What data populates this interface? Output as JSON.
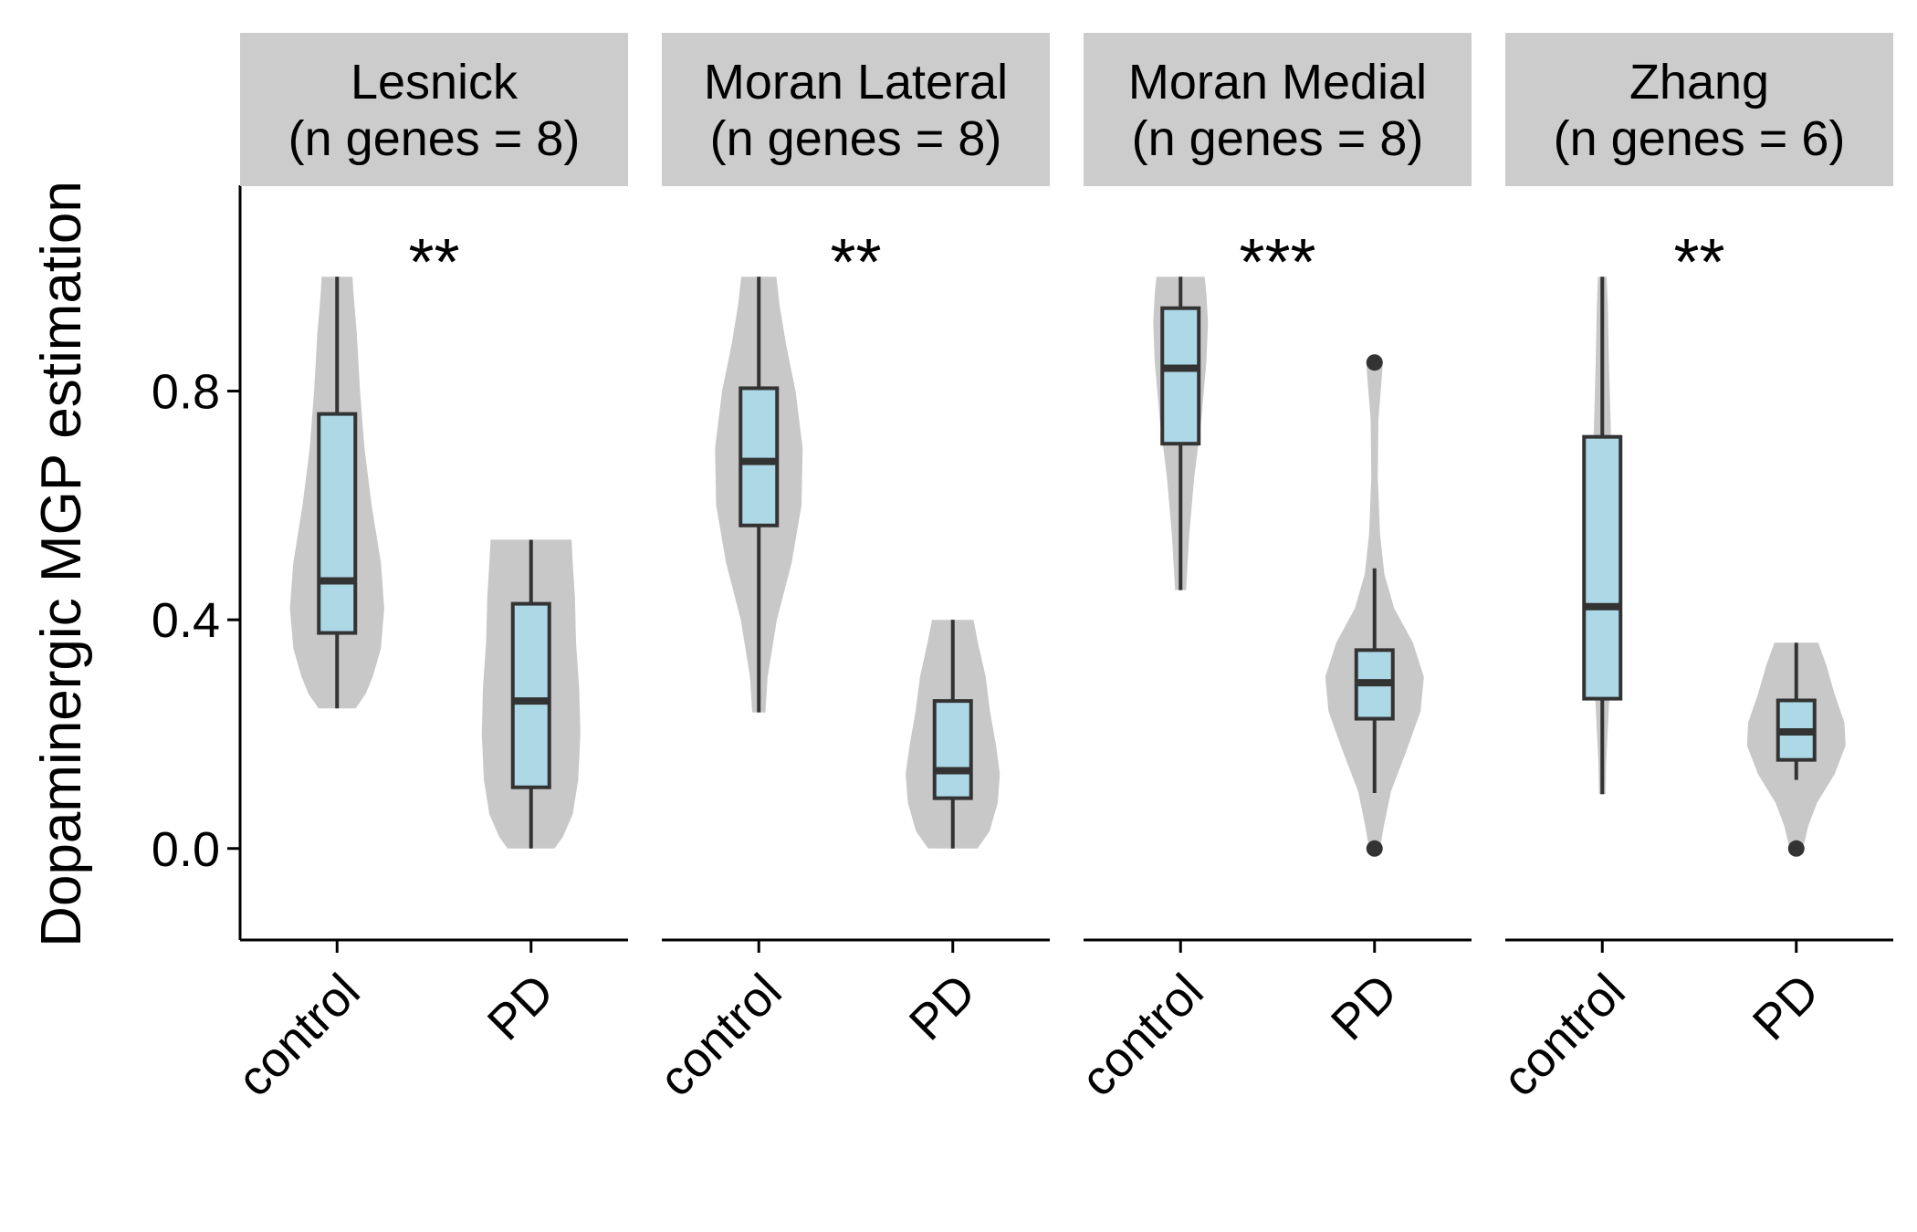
{
  "chart_data": {
    "type": "violin",
    "ylabel": "Dopaminergic MGP estimation",
    "ylim": [
      -0.16,
      1.16
    ],
    "yticks": [
      "0.0",
      "0.4",
      "0.8"
    ],
    "categories": [
      "control",
      "PD"
    ],
    "colors": {
      "violin": "#c8c8c8",
      "box": "#add8e6",
      "line": "#333333",
      "strip": "#cccccc"
    },
    "grid": false,
    "panels": [
      {
        "name": "Lesnick",
        "subtitle": "(n genes = 8)",
        "significance": "**",
        "groups": [
          {
            "label": "control",
            "min": 0.245,
            "q1": 0.377,
            "median": 0.468,
            "q3": 0.76,
            "max": 1.0,
            "outliers": [],
            "density": [
              [
                0.245,
                0.34
              ],
              [
                0.27,
                0.52
              ],
              [
                0.3,
                0.65
              ],
              [
                0.35,
                0.8
              ],
              [
                0.42,
                0.86
              ],
              [
                0.5,
                0.8
              ],
              [
                0.6,
                0.63
              ],
              [
                0.7,
                0.5
              ],
              [
                0.8,
                0.42
              ],
              [
                0.9,
                0.36
              ],
              [
                0.97,
                0.3
              ],
              [
                1.0,
                0.28
              ]
            ]
          },
          {
            "label": "PD",
            "min": 0.0,
            "q1": 0.107,
            "median": 0.258,
            "q3": 0.428,
            "max": 0.54,
            "outliers": [],
            "density": [
              [
                0.0,
                0.43
              ],
              [
                0.02,
                0.58
              ],
              [
                0.06,
                0.76
              ],
              [
                0.12,
                0.86
              ],
              [
                0.2,
                0.9
              ],
              [
                0.28,
                0.88
              ],
              [
                0.36,
                0.82
              ],
              [
                0.44,
                0.8
              ],
              [
                0.5,
                0.76
              ],
              [
                0.54,
                0.74
              ]
            ]
          }
        ]
      },
      {
        "name": "Moran Lateral",
        "subtitle": "(n genes = 8)",
        "significance": "**",
        "groups": [
          {
            "label": "control",
            "min": 0.238,
            "q1": 0.565,
            "median": 0.677,
            "q3": 0.805,
            "max": 1.0,
            "outliers": [],
            "density": [
              [
                0.238,
                0.12
              ],
              [
                0.3,
                0.16
              ],
              [
                0.4,
                0.33
              ],
              [
                0.5,
                0.6
              ],
              [
                0.6,
                0.78
              ],
              [
                0.7,
                0.8
              ],
              [
                0.8,
                0.67
              ],
              [
                0.88,
                0.5
              ],
              [
                0.95,
                0.38
              ],
              [
                1.0,
                0.32
              ]
            ]
          },
          {
            "label": "PD",
            "min": 0.0,
            "q1": 0.088,
            "median": 0.136,
            "q3": 0.258,
            "max": 0.4,
            "outliers": [],
            "density": [
              [
                0.0,
                0.45
              ],
              [
                0.03,
                0.67
              ],
              [
                0.08,
                0.82
              ],
              [
                0.13,
                0.86
              ],
              [
                0.18,
                0.79
              ],
              [
                0.24,
                0.68
              ],
              [
                0.3,
                0.6
              ],
              [
                0.36,
                0.46
              ],
              [
                0.4,
                0.38
              ]
            ]
          }
        ]
      },
      {
        "name": "Moran Medial",
        "subtitle": "(n genes = 8)",
        "significance": "***",
        "groups": [
          {
            "label": "control",
            "min": 0.452,
            "q1": 0.708,
            "median": 0.84,
            "q3": 0.945,
            "max": 1.0,
            "outliers": [],
            "density": [
              [
                0.452,
                0.1
              ],
              [
                0.55,
                0.16
              ],
              [
                0.65,
                0.25
              ],
              [
                0.75,
                0.38
              ],
              [
                0.85,
                0.47
              ],
              [
                0.92,
                0.5
              ],
              [
                0.97,
                0.47
              ],
              [
                1.0,
                0.44
              ]
            ]
          },
          {
            "label": "PD",
            "min": 0.097,
            "q1": 0.227,
            "median": 0.29,
            "q3": 0.347,
            "max": 0.49,
            "outliers": [
              0.0,
              0.85
            ],
            "density": [
              [
                0.0,
                0.1
              ],
              [
                0.04,
                0.17
              ],
              [
                0.1,
                0.3
              ],
              [
                0.17,
                0.58
              ],
              [
                0.24,
                0.84
              ],
              [
                0.3,
                0.9
              ],
              [
                0.36,
                0.7
              ],
              [
                0.42,
                0.36
              ],
              [
                0.48,
                0.18
              ],
              [
                0.55,
                0.1
              ],
              [
                0.65,
                0.06
              ],
              [
                0.75,
                0.07
              ],
              [
                0.82,
                0.13
              ],
              [
                0.85,
                0.15
              ]
            ]
          }
        ]
      },
      {
        "name": "Zhang",
        "subtitle": "(n genes = 6)",
        "significance": "**",
        "groups": [
          {
            "label": "control",
            "min": 0.095,
            "q1": 0.262,
            "median": 0.423,
            "q3": 0.72,
            "max": 1.0,
            "outliers": [],
            "density": [
              [
                0.095,
                0.06
              ],
              [
                0.15,
                0.07
              ],
              [
                0.25,
                0.12
              ],
              [
                0.35,
                0.2
              ],
              [
                0.45,
                0.26
              ],
              [
                0.55,
                0.23
              ],
              [
                0.65,
                0.18
              ],
              [
                0.75,
                0.15
              ],
              [
                0.85,
                0.12
              ],
              [
                0.95,
                0.1
              ],
              [
                1.0,
                0.08
              ]
            ]
          },
          {
            "label": "PD",
            "min": 0.12,
            "q1": 0.155,
            "median": 0.204,
            "q3": 0.259,
            "max": 0.36,
            "outliers": [
              0.0
            ],
            "density": [
              [
                0.0,
                0.12
              ],
              [
                0.04,
                0.22
              ],
              [
                0.08,
                0.38
              ],
              [
                0.13,
                0.7
              ],
              [
                0.18,
                0.9
              ],
              [
                0.22,
                0.88
              ],
              [
                0.27,
                0.7
              ],
              [
                0.32,
                0.55
              ],
              [
                0.36,
                0.4
              ]
            ]
          }
        ]
      }
    ]
  }
}
